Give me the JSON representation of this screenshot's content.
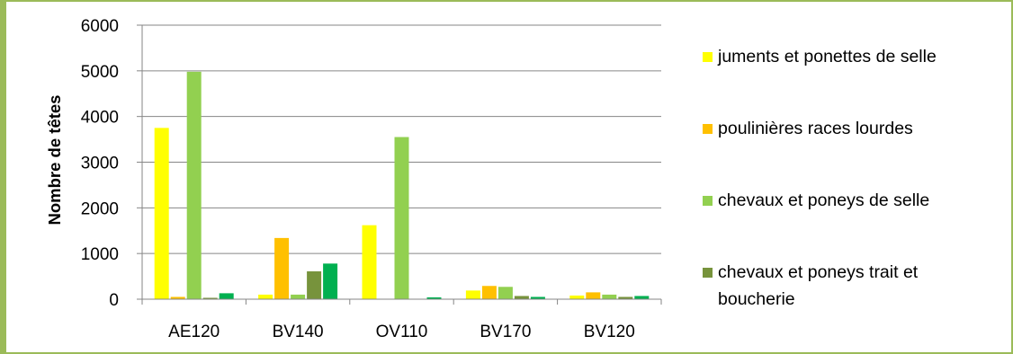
{
  "chart_data": {
    "type": "bar",
    "ylabel": "Nombre de têtes",
    "ylim": [
      0,
      6000
    ],
    "yticks": [
      "0",
      "1000",
      "2000",
      "3000",
      "4000",
      "5000",
      "6000"
    ],
    "categories": [
      "AE120",
      "BV140",
      "OV110",
      "BV170",
      "BV120"
    ],
    "grid": true,
    "legend_position": "right",
    "series": [
      {
        "name": "juments et ponettes de selle",
        "color": "#ffff00",
        "values": [
          3750,
          100,
          1620,
          190,
          80
        ]
      },
      {
        "name": "poulinières races lourdes",
        "color": "#ffc000",
        "values": [
          50,
          1340,
          0,
          290,
          150
        ]
      },
      {
        "name": "chevaux et poneys de selle",
        "color": "#92d050",
        "values": [
          4980,
          100,
          3550,
          270,
          100
        ]
      },
      {
        "name": "chevaux et poneys trait et boucherie",
        "color": "#77933c",
        "values": [
          30,
          610,
          0,
          70,
          50
        ]
      },
      {
        "name": "",
        "color": "#00b050",
        "values": [
          130,
          780,
          40,
          50,
          70
        ]
      }
    ]
  },
  "legend": {
    "items": [
      {
        "label": "juments et ponettes de selle",
        "color": "#ffff00"
      },
      {
        "label": "poulinières races lourdes",
        "color": "#ffc000"
      },
      {
        "label": "chevaux et poneys de selle",
        "color": "#92d050"
      },
      {
        "label_line1": "chevaux et poneys trait et",
        "label_line2": "boucherie",
        "color": "#77933c"
      }
    ]
  }
}
